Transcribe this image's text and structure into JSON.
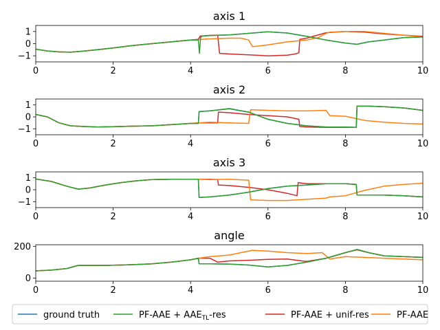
{
  "chart_data": [
    {
      "type": "line",
      "title": "axis 1",
      "xlim": [
        0,
        10
      ],
      "ylim": [
        -1.5,
        1.5
      ],
      "xticks": [
        "0",
        "2",
        "4",
        "6",
        "8",
        "10"
      ],
      "yticks": [
        "1",
        "0",
        "−1"
      ],
      "series": [
        {
          "key": "gt",
          "x": [
            0,
            0.3,
            0.6,
            0.9,
            1.2,
            1.6,
            2.0,
            2.5,
            3.0,
            3.5,
            4.0,
            4.2,
            4.25,
            4.5,
            5.0,
            5.5,
            6.0,
            6.5,
            7.0,
            7.5,
            8.0,
            8.3,
            8.6,
            9.0,
            9.5,
            10
          ],
          "y": [
            -0.45,
            -0.6,
            -0.68,
            -0.7,
            -0.62,
            -0.5,
            -0.35,
            -0.15,
            0.0,
            0.15,
            0.3,
            0.35,
            0.62,
            0.68,
            0.72,
            0.85,
            0.98,
            0.88,
            0.6,
            0.3,
            0.05,
            -0.05,
            0.15,
            0.3,
            0.5,
            0.55
          ]
        },
        {
          "key": "aae",
          "x": [
            0,
            0.3,
            0.6,
            0.9,
            1.2,
            1.6,
            2.0,
            2.5,
            3.0,
            3.5,
            4.0,
            4.2,
            4.23,
            4.26,
            4.3,
            4.5,
            5.0,
            5.5,
            6.0,
            6.5,
            7.0,
            7.5,
            8.0,
            8.3,
            8.6,
            9.0,
            9.5,
            10
          ],
          "y": [
            -0.45,
            -0.6,
            -0.68,
            -0.7,
            -0.62,
            -0.5,
            -0.35,
            -0.15,
            0.0,
            0.15,
            0.3,
            0.3,
            -0.8,
            0.5,
            0.62,
            0.66,
            0.72,
            0.85,
            0.98,
            0.88,
            0.6,
            0.3,
            0.05,
            -0.05,
            0.15,
            0.3,
            0.5,
            0.55
          ]
        },
        {
          "key": "unif",
          "x": [
            0,
            0.3,
            0.6,
            0.9,
            1.2,
            1.6,
            2.0,
            2.5,
            3.0,
            3.5,
            4.0,
            4.2,
            4.25,
            4.5,
            4.7,
            4.75,
            5.0,
            5.5,
            6.0,
            6.5,
            6.7,
            6.8,
            6.82,
            7.0,
            7.5,
            8.0,
            8.5,
            9.0,
            9.5,
            10
          ],
          "y": [
            -0.45,
            -0.6,
            -0.68,
            -0.7,
            -0.62,
            -0.5,
            -0.35,
            -0.15,
            0.0,
            0.15,
            0.3,
            0.35,
            0.62,
            0.68,
            0.7,
            -0.8,
            -0.85,
            -0.92,
            -1.0,
            -0.95,
            -0.85,
            -0.75,
            0.35,
            0.45,
            0.9,
            1.0,
            0.95,
            0.8,
            0.7,
            0.6
          ]
        },
        {
          "key": "pfaae",
          "x": [
            0,
            0.3,
            0.6,
            0.9,
            1.2,
            1.6,
            2.0,
            2.5,
            3.0,
            3.5,
            4.0,
            4.2,
            4.4,
            4.7,
            5.0,
            5.3,
            5.5,
            5.6,
            6.0,
            6.5,
            7.0,
            7.3,
            7.5,
            7.6,
            8.0,
            8.5,
            9.0,
            9.5,
            10
          ],
          "y": [
            -0.45,
            -0.6,
            -0.68,
            -0.7,
            -0.62,
            -0.5,
            -0.35,
            -0.15,
            0.0,
            0.15,
            0.3,
            0.32,
            0.38,
            0.42,
            0.45,
            0.45,
            0.3,
            -0.25,
            -0.1,
            0.15,
            0.3,
            0.5,
            0.85,
            0.95,
            1.0,
            1.0,
            0.85,
            0.7,
            0.55
          ]
        }
      ]
    },
    {
      "type": "line",
      "title": "axis 2",
      "xlim": [
        0,
        10
      ],
      "ylim": [
        -1.5,
        1.5
      ],
      "xticks": [
        "0",
        "2",
        "4",
        "6",
        "8",
        "10"
      ],
      "yticks": [
        "1",
        "0",
        "−1"
      ],
      "series": [
        {
          "key": "gt",
          "x": [
            0,
            0.3,
            0.6,
            0.9,
            1.2,
            1.6,
            2.0,
            2.5,
            3.0,
            3.5,
            4.0,
            4.2,
            4.22,
            4.5,
            5.0,
            5.5,
            6.0,
            6.5,
            7.0,
            7.5,
            8.0,
            8.28,
            8.3,
            8.6,
            9.0,
            9.5,
            10
          ],
          "y": [
            0.2,
            0.0,
            -0.5,
            -0.75,
            -0.8,
            -0.85,
            -0.82,
            -0.78,
            -0.75,
            -0.65,
            -0.55,
            -0.55,
            0.45,
            0.5,
            0.68,
            0.4,
            -0.2,
            -0.55,
            -0.75,
            -0.85,
            -0.85,
            -0.88,
            0.9,
            0.9,
            0.85,
            0.75,
            0.55
          ]
        },
        {
          "key": "aae",
          "x": [
            0,
            0.3,
            0.6,
            0.9,
            1.2,
            1.6,
            2.0,
            2.5,
            3.0,
            3.5,
            4.0,
            4.2,
            4.22,
            4.5,
            5.0,
            5.5,
            6.0,
            6.5,
            7.0,
            7.5,
            8.0,
            8.28,
            8.3,
            8.6,
            9.0,
            9.5,
            10
          ],
          "y": [
            0.2,
            0.0,
            -0.5,
            -0.75,
            -0.8,
            -0.85,
            -0.82,
            -0.78,
            -0.75,
            -0.65,
            -0.55,
            -0.55,
            0.45,
            0.5,
            0.7,
            0.4,
            -0.2,
            -0.55,
            -0.75,
            -0.85,
            -0.85,
            -0.88,
            0.9,
            0.9,
            0.85,
            0.75,
            0.55
          ]
        },
        {
          "key": "unif",
          "x": [
            0,
            0.3,
            0.6,
            0.9,
            1.2,
            1.6,
            2.0,
            2.5,
            3.0,
            3.5,
            4.0,
            4.2,
            4.5,
            4.7,
            4.72,
            5.0,
            5.5,
            6.0,
            6.5,
            6.8,
            6.82,
            7.0,
            7.5,
            8.0,
            8.28,
            8.3,
            8.6,
            9.0,
            9.5,
            10
          ],
          "y": [
            0.2,
            0.0,
            -0.5,
            -0.75,
            -0.8,
            -0.85,
            -0.82,
            -0.78,
            -0.75,
            -0.65,
            -0.55,
            -0.5,
            -0.5,
            -0.5,
            0.4,
            0.35,
            0.2,
            0.1,
            0.0,
            -0.2,
            -0.8,
            -0.85,
            -0.88,
            -0.88,
            -0.88,
            0.9,
            0.9,
            0.85,
            0.75,
            0.55
          ]
        },
        {
          "key": "pfaae",
          "x": [
            0,
            0.3,
            0.6,
            0.9,
            1.2,
            1.6,
            2.0,
            2.5,
            3.0,
            3.5,
            4.0,
            4.2,
            4.5,
            5.0,
            5.5,
            5.55,
            6.0,
            6.5,
            7.0,
            7.5,
            7.6,
            8.0,
            8.5,
            9.0,
            9.5,
            10
          ],
          "y": [
            0.2,
            0.0,
            -0.5,
            -0.75,
            -0.8,
            -0.85,
            -0.82,
            -0.78,
            -0.75,
            -0.65,
            -0.55,
            -0.5,
            -0.45,
            -0.5,
            -0.55,
            0.6,
            0.55,
            0.5,
            0.5,
            0.55,
            0.1,
            0.05,
            -0.3,
            -0.45,
            -0.55,
            -0.6
          ]
        }
      ]
    },
    {
      "type": "line",
      "title": "axis 3",
      "xlim": [
        0,
        10
      ],
      "ylim": [
        -1.5,
        1.5
      ],
      "xticks": [
        "0",
        "2",
        "4",
        "6",
        "8",
        "10"
      ],
      "yticks": [
        "1",
        "0",
        "−1"
      ],
      "series": [
        {
          "key": "gt",
          "x": [
            0,
            0.4,
            0.8,
            1.1,
            1.4,
            1.8,
            2.2,
            2.6,
            3.0,
            3.5,
            4.0,
            4.2,
            4.22,
            4.5,
            5.0,
            5.5,
            6.0,
            6.5,
            7.0,
            7.5,
            8.0,
            8.28,
            8.3,
            8.6,
            9.0,
            9.5,
            10
          ],
          "y": [
            0.9,
            0.7,
            0.3,
            0.05,
            0.15,
            0.4,
            0.6,
            0.75,
            0.85,
            0.88,
            0.88,
            0.88,
            -0.65,
            -0.6,
            -0.45,
            -0.2,
            0.1,
            0.3,
            0.4,
            0.5,
            0.5,
            0.45,
            -0.45,
            -0.45,
            -0.45,
            -0.5,
            -0.6
          ]
        },
        {
          "key": "aae",
          "x": [
            0,
            0.4,
            0.8,
            1.1,
            1.4,
            1.8,
            2.2,
            2.6,
            3.0,
            3.5,
            4.0,
            4.2,
            4.22,
            4.5,
            5.0,
            5.5,
            6.0,
            6.5,
            7.0,
            7.5,
            8.0,
            8.28,
            8.3,
            8.6,
            9.0,
            9.5,
            10
          ],
          "y": [
            0.9,
            0.7,
            0.3,
            0.05,
            0.15,
            0.4,
            0.6,
            0.75,
            0.85,
            0.88,
            0.88,
            0.88,
            -0.65,
            -0.6,
            -0.45,
            -0.2,
            0.1,
            0.3,
            0.4,
            0.5,
            0.5,
            0.45,
            -0.45,
            -0.45,
            -0.45,
            -0.5,
            -0.6
          ]
        },
        {
          "key": "unif",
          "x": [
            0,
            0.4,
            0.8,
            1.1,
            1.4,
            1.8,
            2.2,
            2.6,
            3.0,
            3.5,
            4.0,
            4.2,
            4.5,
            4.7,
            4.72,
            5.0,
            5.5,
            6.0,
            6.5,
            6.75,
            6.78,
            7.0,
            7.5,
            8.0,
            8.28,
            8.3,
            8.6,
            9.0,
            9.5,
            10
          ],
          "y": [
            0.9,
            0.7,
            0.3,
            0.05,
            0.15,
            0.4,
            0.6,
            0.75,
            0.85,
            0.88,
            0.88,
            0.88,
            0.88,
            0.85,
            0.4,
            0.35,
            0.2,
            0.0,
            -0.3,
            -0.5,
            0.6,
            0.5,
            0.5,
            0.5,
            0.45,
            -0.45,
            -0.45,
            -0.45,
            -0.5,
            -0.6
          ]
        },
        {
          "key": "pfaae",
          "x": [
            0,
            0.4,
            0.8,
            1.1,
            1.4,
            1.8,
            2.2,
            2.6,
            3.0,
            3.5,
            4.0,
            4.2,
            4.5,
            5.0,
            5.5,
            5.55,
            6.0,
            6.5,
            7.0,
            7.5,
            7.6,
            8.0,
            8.5,
            9.0,
            9.5,
            10
          ],
          "y": [
            0.9,
            0.7,
            0.3,
            0.05,
            0.15,
            0.4,
            0.6,
            0.75,
            0.85,
            0.88,
            0.88,
            0.88,
            0.85,
            0.88,
            0.8,
            -0.85,
            -0.9,
            -0.9,
            -0.8,
            -0.7,
            -0.6,
            -0.5,
            -0.05,
            0.3,
            0.45,
            0.55
          ]
        }
      ]
    },
    {
      "type": "line",
      "title": "angle",
      "xlim": [
        0,
        10
      ],
      "ylim": [
        -20,
        210
      ],
      "xticks": [
        "0",
        "2",
        "4",
        "6",
        "8",
        "10"
      ],
      "yticks": [
        "200",
        "0"
      ],
      "series": [
        {
          "key": "gt",
          "x": [
            0,
            0.4,
            0.8,
            1.1,
            1.4,
            1.8,
            2.2,
            2.6,
            3.0,
            3.5,
            4.0,
            4.2,
            4.22,
            4.5,
            5.0,
            5.5,
            6.0,
            6.5,
            7.0,
            7.5,
            8.0,
            8.3,
            8.6,
            9.0,
            9.5,
            10
          ],
          "y": [
            45,
            50,
            60,
            80,
            80,
            80,
            82,
            85,
            90,
            100,
            115,
            125,
            90,
            90,
            88,
            82,
            70,
            80,
            100,
            125,
            160,
            180,
            160,
            140,
            135,
            130
          ]
        },
        {
          "key": "aae",
          "x": [
            0,
            0.4,
            0.8,
            1.1,
            1.4,
            1.8,
            2.2,
            2.6,
            3.0,
            3.5,
            4.0,
            4.2,
            4.22,
            4.5,
            5.0,
            5.5,
            6.0,
            6.5,
            7.0,
            7.5,
            8.0,
            8.3,
            8.6,
            9.0,
            9.5,
            10
          ],
          "y": [
            45,
            50,
            60,
            80,
            80,
            80,
            82,
            85,
            90,
            100,
            115,
            125,
            90,
            90,
            88,
            82,
            70,
            80,
            100,
            125,
            160,
            180,
            160,
            140,
            135,
            130
          ]
        },
        {
          "key": "unif",
          "x": [
            0,
            0.4,
            0.8,
            1.1,
            1.4,
            1.8,
            2.2,
            2.6,
            3.0,
            3.5,
            4.0,
            4.2,
            4.5,
            4.7,
            5.0,
            5.5,
            6.0,
            6.5,
            6.8,
            7.0,
            7.5,
            8.0,
            8.3,
            8.6,
            9.0,
            9.5,
            10
          ],
          "y": [
            45,
            50,
            60,
            80,
            80,
            80,
            82,
            85,
            90,
            100,
            115,
            125,
            125,
            100,
            108,
            112,
            118,
            120,
            110,
            105,
            125,
            160,
            178,
            160,
            140,
            135,
            130
          ]
        },
        {
          "key": "pfaae",
          "x": [
            0,
            0.4,
            0.8,
            1.1,
            1.4,
            1.8,
            2.2,
            2.6,
            3.0,
            3.5,
            4.0,
            4.2,
            4.5,
            5.0,
            5.3,
            5.6,
            6.0,
            6.5,
            7.0,
            7.4,
            7.6,
            8.0,
            8.5,
            9.0,
            9.5,
            10
          ],
          "y": [
            45,
            50,
            60,
            80,
            80,
            80,
            82,
            85,
            90,
            100,
            115,
            125,
            135,
            145,
            160,
            175,
            170,
            160,
            155,
            160,
            120,
            135,
            130,
            125,
            120,
            115
          ]
        }
      ]
    }
  ],
  "legend": {
    "items": [
      {
        "key": "gt",
        "label": "ground truth",
        "sub": ""
      },
      {
        "key": "aae",
        "label": "PF-AAE + AAE",
        "sub": "TL",
        "suffix": "-res"
      },
      {
        "key": "unif",
        "label": "PF-AAE + unif-res",
        "sub": ""
      },
      {
        "key": "pfaae",
        "label": "PF-AAE",
        "sub": ""
      }
    ]
  },
  "colors": {
    "gt": "#1f77b4",
    "aae": "#2ca02c",
    "unif": "#d62728",
    "pfaae": "#ff7f0e"
  }
}
